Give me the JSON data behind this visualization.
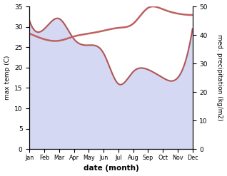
{
  "months": [
    "Jan",
    "Feb",
    "Mar",
    "Apr",
    "May",
    "Jun",
    "Jul",
    "Aug",
    "Sep",
    "Oct",
    "Nov",
    "Dec"
  ],
  "x": [
    0,
    1,
    2,
    3,
    4,
    5,
    6,
    7,
    8,
    9,
    10,
    11
  ],
  "temperature": [
    31.5,
    29.5,
    32.0,
    27.0,
    25.5,
    23.5,
    16.0,
    19.0,
    19.5,
    17.5,
    17.5,
    29.5
  ],
  "precipitation": [
    40.5,
    38.5,
    38.0,
    39.5,
    40.5,
    41.5,
    42.5,
    44.0,
    49.5,
    49.0,
    47.5,
    47.0
  ],
  "temp_color": "#b05555",
  "precip_color": "#c06060",
  "fill_color": "#c8ccee",
  "fill_alpha": 0.75,
  "temp_ylim": [
    0,
    35
  ],
  "precip_ylim": [
    0,
    50
  ],
  "xlabel": "date (month)",
  "ylabel_left": "max temp (C)",
  "ylabel_right": "med. precipitation (kg/m2)",
  "bg_color": "#ffffff",
  "figwidth": 3.18,
  "figheight": 2.47,
  "dpi": 100
}
